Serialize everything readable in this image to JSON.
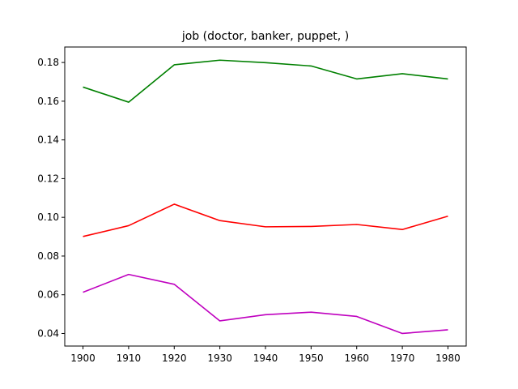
{
  "chart_data": {
    "type": "line",
    "title": "job (doctor, banker, puppet, )",
    "xlabel": "",
    "ylabel": "",
    "x": [
      1900,
      1910,
      1920,
      1930,
      1940,
      1950,
      1960,
      1970,
      1980
    ],
    "x_ticks": [
      "1900",
      "1910",
      "1920",
      "1930",
      "1940",
      "1950",
      "1960",
      "1970",
      "1980"
    ],
    "y_ticks": [
      "0.04",
      "0.06",
      "0.08",
      "0.10",
      "0.12",
      "0.14",
      "0.16",
      "0.18"
    ],
    "y_tick_values": [
      0.04,
      0.06,
      0.08,
      0.1,
      0.12,
      0.14,
      0.16,
      0.18
    ],
    "xlim": [
      1896,
      1984
    ],
    "ylim": [
      0.0335,
      0.188
    ],
    "grid": false,
    "legend": "none",
    "series": [
      {
        "color": "#008000",
        "values": [
          0.1673,
          0.1595,
          0.1788,
          0.1812,
          0.1799,
          0.1782,
          0.1715,
          0.1742,
          0.1715
        ]
      },
      {
        "color": "#ff0000",
        "values": [
          0.0901,
          0.0957,
          0.1068,
          0.0983,
          0.0951,
          0.0953,
          0.0963,
          0.0937,
          0.1006
        ]
      },
      {
        "color": "#bf00bf",
        "values": [
          0.0613,
          0.0705,
          0.0654,
          0.0465,
          0.0497,
          0.051,
          0.0488,
          0.04,
          0.0419
        ]
      }
    ]
  }
}
